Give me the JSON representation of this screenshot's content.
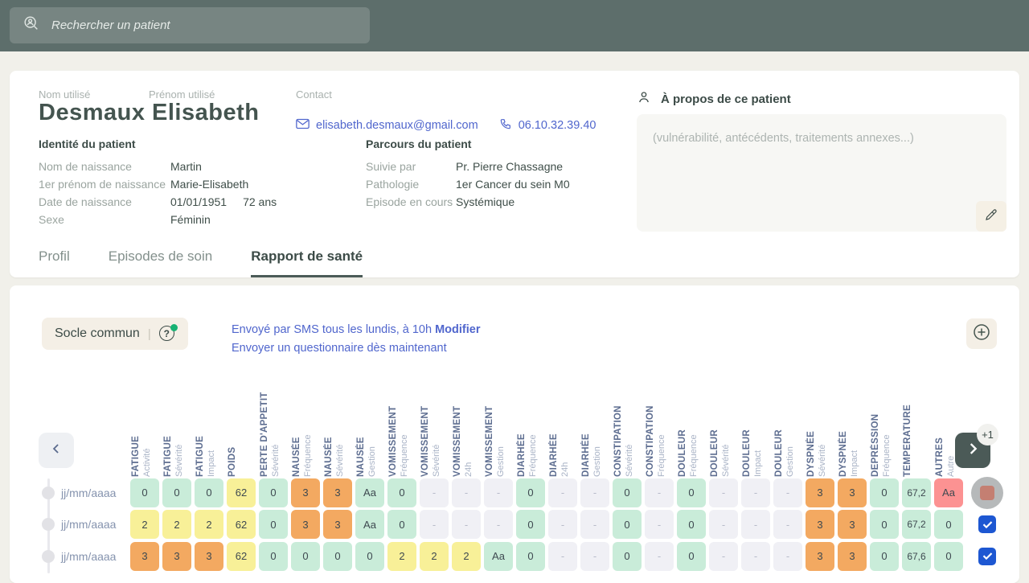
{
  "topbar": {
    "search_placeholder": "Rechercher un patient"
  },
  "patient": {
    "name_label": "Nom utilisé",
    "firstname_label": "Prénom utilisé",
    "last_name": "Desmaux",
    "first_name": "Elisabeth",
    "contact_label": "Contact",
    "email": "elisabeth.desmaux@gmail.com",
    "phone": "06.10.32.39.40",
    "identity": {
      "title": "Identité du patient",
      "rows": [
        {
          "label": "Nom de naissance",
          "value": "Martin",
          "extra": ""
        },
        {
          "label": "1er prénom de naissance",
          "value": "Marie-Elisabeth",
          "extra": ""
        },
        {
          "label": "Date de naissance",
          "value": "01/01/1951",
          "extra": "72 ans"
        },
        {
          "label": "Sexe",
          "value": "Féminin",
          "extra": ""
        }
      ]
    },
    "parcours": {
      "title": "Parcours du patient",
      "rows": [
        {
          "label": "Suivie par",
          "value": "Pr. Pierre Chassagne"
        },
        {
          "label": "Pathologie",
          "value": "1er Cancer du sein M0"
        },
        {
          "label": "Episode en cours",
          "value": "Systémique"
        }
      ]
    },
    "about": {
      "title": "À propos de ce patient",
      "placeholder": "(vulnérabilité, antécédents, traitements annexes...)"
    }
  },
  "tabs": [
    {
      "label": "Profil",
      "active": false
    },
    {
      "label": "Episodes de soin",
      "active": false
    },
    {
      "label": "Rapport de santé",
      "active": true
    }
  ],
  "report": {
    "questionnaire_button": "Socle commun",
    "sms_info": "Envoyé par SMS tous les lundis, à 10h",
    "modify_link": "Modifier",
    "send_now_link": "Envoyer un questionnaire dès maintenant",
    "more_badge": "+1"
  },
  "table": {
    "columns": [
      {
        "group": "FATIGUE",
        "sub": "Activité"
      },
      {
        "group": "FATIGUE",
        "sub": "Sévérité"
      },
      {
        "group": "FATIGUE",
        "sub": "Impact"
      },
      {
        "group": "POIDS",
        "sub": ""
      },
      {
        "group": "PERTE D'APPETIT",
        "sub": "Sévérité"
      },
      {
        "group": "NAUSÉE",
        "sub": "Fréquence"
      },
      {
        "group": "NAUSÉE",
        "sub": "Sévérité"
      },
      {
        "group": "NAUSÉE",
        "sub": "Gestion"
      },
      {
        "group": "VOMISSEMENT",
        "sub": "Fréquence"
      },
      {
        "group": "VOMISSEMENT",
        "sub": "Sévérité"
      },
      {
        "group": "VOMISSEMENT",
        "sub": "24h"
      },
      {
        "group": "VOMISSEMENT",
        "sub": "Gestion"
      },
      {
        "group": "DIARHÉE",
        "sub": "Fréquence"
      },
      {
        "group": "DIARHÉE",
        "sub": "24h"
      },
      {
        "group": "DIARHÉE",
        "sub": "Gestion"
      },
      {
        "group": "CONSTIPATION",
        "sub": "Sévérité"
      },
      {
        "group": "CONSTIPATION",
        "sub": "Fréquence"
      },
      {
        "group": "DOULEUR",
        "sub": "Fréquence"
      },
      {
        "group": "DOULEUR",
        "sub": "Sévérité"
      },
      {
        "group": "DOULEUR",
        "sub": "Impact"
      },
      {
        "group": "DOULEUR",
        "sub": "Gestion"
      },
      {
        "group": "DYSPNÉE",
        "sub": "Sévérité"
      },
      {
        "group": "DYSPNÉE",
        "sub": "Impact"
      },
      {
        "group": "DEPRÉSSION",
        "sub": "Fréquence"
      },
      {
        "group": "TEMPERATURE",
        "sub": ""
      },
      {
        "group": "AUTRES",
        "sub": "Autre"
      }
    ],
    "rows": [
      {
        "date": "jj/mm/aaaa",
        "control": "stop",
        "cells": [
          [
            "0",
            "g"
          ],
          [
            "0",
            "g"
          ],
          [
            "0",
            "g"
          ],
          [
            "62",
            "y"
          ],
          [
            "0",
            "g"
          ],
          [
            "3",
            "o"
          ],
          [
            "3",
            "o"
          ],
          [
            "Aa",
            "g"
          ],
          [
            "0",
            "g"
          ],
          [
            "-",
            "n"
          ],
          [
            "-",
            "n"
          ],
          [
            "-",
            "n"
          ],
          [
            "0",
            "g"
          ],
          [
            "-",
            "n"
          ],
          [
            "-",
            "n"
          ],
          [
            "0",
            "g"
          ],
          [
            "-",
            "n"
          ],
          [
            "0",
            "g"
          ],
          [
            "-",
            "n"
          ],
          [
            "-",
            "n"
          ],
          [
            "-",
            "n"
          ],
          [
            "3",
            "o"
          ],
          [
            "3",
            "o"
          ],
          [
            "0",
            "g"
          ],
          [
            "67,2",
            "g"
          ],
          [
            "Aa",
            "r"
          ]
        ]
      },
      {
        "date": "jj/mm/aaaa",
        "control": "checked",
        "cells": [
          [
            "2",
            "y"
          ],
          [
            "2",
            "y"
          ],
          [
            "2",
            "y"
          ],
          [
            "62",
            "y"
          ],
          [
            "0",
            "g"
          ],
          [
            "3",
            "o"
          ],
          [
            "3",
            "o"
          ],
          [
            "Aa",
            "g"
          ],
          [
            "0",
            "g"
          ],
          [
            "-",
            "n"
          ],
          [
            "-",
            "n"
          ],
          [
            "-",
            "n"
          ],
          [
            "0",
            "g"
          ],
          [
            "-",
            "n"
          ],
          [
            "-",
            "n"
          ],
          [
            "0",
            "g"
          ],
          [
            "-",
            "n"
          ],
          [
            "0",
            "g"
          ],
          [
            "-",
            "n"
          ],
          [
            "-",
            "n"
          ],
          [
            "-",
            "n"
          ],
          [
            "3",
            "o"
          ],
          [
            "3",
            "o"
          ],
          [
            "0",
            "g"
          ],
          [
            "67,2",
            "g"
          ],
          [
            "0",
            "g"
          ]
        ]
      },
      {
        "date": "jj/mm/aaaa",
        "control": "checked",
        "cells": [
          [
            "3",
            "o"
          ],
          [
            "3",
            "o"
          ],
          [
            "3",
            "o"
          ],
          [
            "62",
            "y"
          ],
          [
            "0",
            "g"
          ],
          [
            "0",
            "g"
          ],
          [
            "0",
            "g"
          ],
          [
            "0",
            "g"
          ],
          [
            "2",
            "y"
          ],
          [
            "2",
            "y"
          ],
          [
            "2",
            "y"
          ],
          [
            "Aa",
            "g"
          ],
          [
            "0",
            "g"
          ],
          [
            "-",
            "n"
          ],
          [
            "-",
            "n"
          ],
          [
            "0",
            "g"
          ],
          [
            "-",
            "n"
          ],
          [
            "0",
            "g"
          ],
          [
            "-",
            "n"
          ],
          [
            "-",
            "n"
          ],
          [
            "-",
            "n"
          ],
          [
            "3",
            "o"
          ],
          [
            "3",
            "o"
          ],
          [
            "0",
            "g"
          ],
          [
            "67,6",
            "g"
          ],
          [
            "0",
            "g"
          ]
        ]
      }
    ]
  },
  "colors": {
    "topbar": "#5d6e6b",
    "page_bg": "#f1f0ea",
    "accent_link": "#5066cd",
    "cell_green": "#c9ecd9",
    "cell_yellow": "#f8f098",
    "cell_orange": "#f3a961",
    "cell_red": "#fc9292",
    "cell_empty": "#f0f0f5",
    "checkbox_blue": "#1d57d2",
    "dark_button": "#4b5a57",
    "beige_button": "#f4efe6",
    "help_dot_green": "#17b273"
  }
}
